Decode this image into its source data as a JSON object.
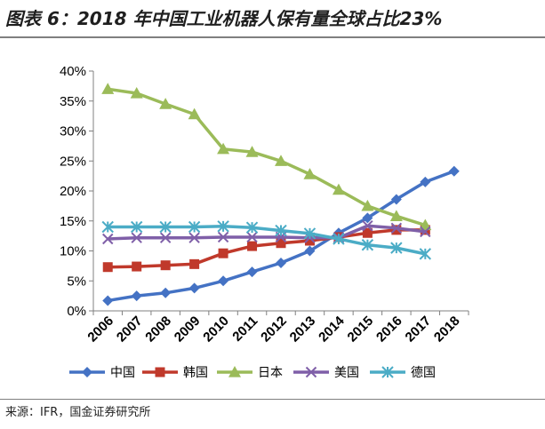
{
  "figure": {
    "title": "图表 6：2018 年中国工业机器人保有量全球占比23%",
    "source": "来源：IFR，国金证券研究所"
  },
  "chart_data": {
    "type": "line",
    "title": "",
    "xlabel": "",
    "ylabel": "",
    "categories": [
      "2006",
      "2007",
      "2008",
      "2009",
      "2010",
      "2011",
      "2012",
      "2013",
      "2014",
      "2015",
      "2016",
      "2017",
      "2018"
    ],
    "ylim": [
      0,
      40
    ],
    "yticks": [
      "0%",
      "5%",
      "10%",
      "15%",
      "20%",
      "25%",
      "30%",
      "35%",
      "40%"
    ],
    "grid": false,
    "legend_position": "bottom",
    "series": [
      {
        "name": "中国",
        "color": "#4472c4",
        "marker": "diamond",
        "values": [
          1.7,
          2.5,
          3.0,
          3.8,
          5.0,
          6.5,
          8.0,
          10.0,
          13.0,
          15.5,
          18.6,
          21.5,
          23.3
        ]
      },
      {
        "name": "韩国",
        "color": "#c0392b",
        "marker": "square",
        "values": [
          7.3,
          7.4,
          7.6,
          7.8,
          9.6,
          10.8,
          11.3,
          11.7,
          12.3,
          13.0,
          13.5,
          13.5,
          null
        ]
      },
      {
        "name": "日本",
        "color": "#9bbb59",
        "marker": "triangle",
        "values": [
          37.0,
          36.3,
          34.5,
          32.8,
          27.0,
          26.5,
          25.0,
          22.8,
          20.2,
          17.5,
          15.8,
          14.3,
          null
        ]
      },
      {
        "name": "美国",
        "color": "#7f5fa8",
        "marker": "x",
        "values": [
          12.0,
          12.2,
          12.2,
          12.2,
          12.3,
          12.3,
          12.3,
          12.2,
          12.2,
          14.2,
          13.8,
          13.2,
          null
        ]
      },
      {
        "name": "德国",
        "color": "#4bacc6",
        "marker": "star",
        "values": [
          14.0,
          14.0,
          14.0,
          14.0,
          14.1,
          13.9,
          13.4,
          12.9,
          12.0,
          11.0,
          10.5,
          9.5,
          null
        ]
      }
    ]
  }
}
